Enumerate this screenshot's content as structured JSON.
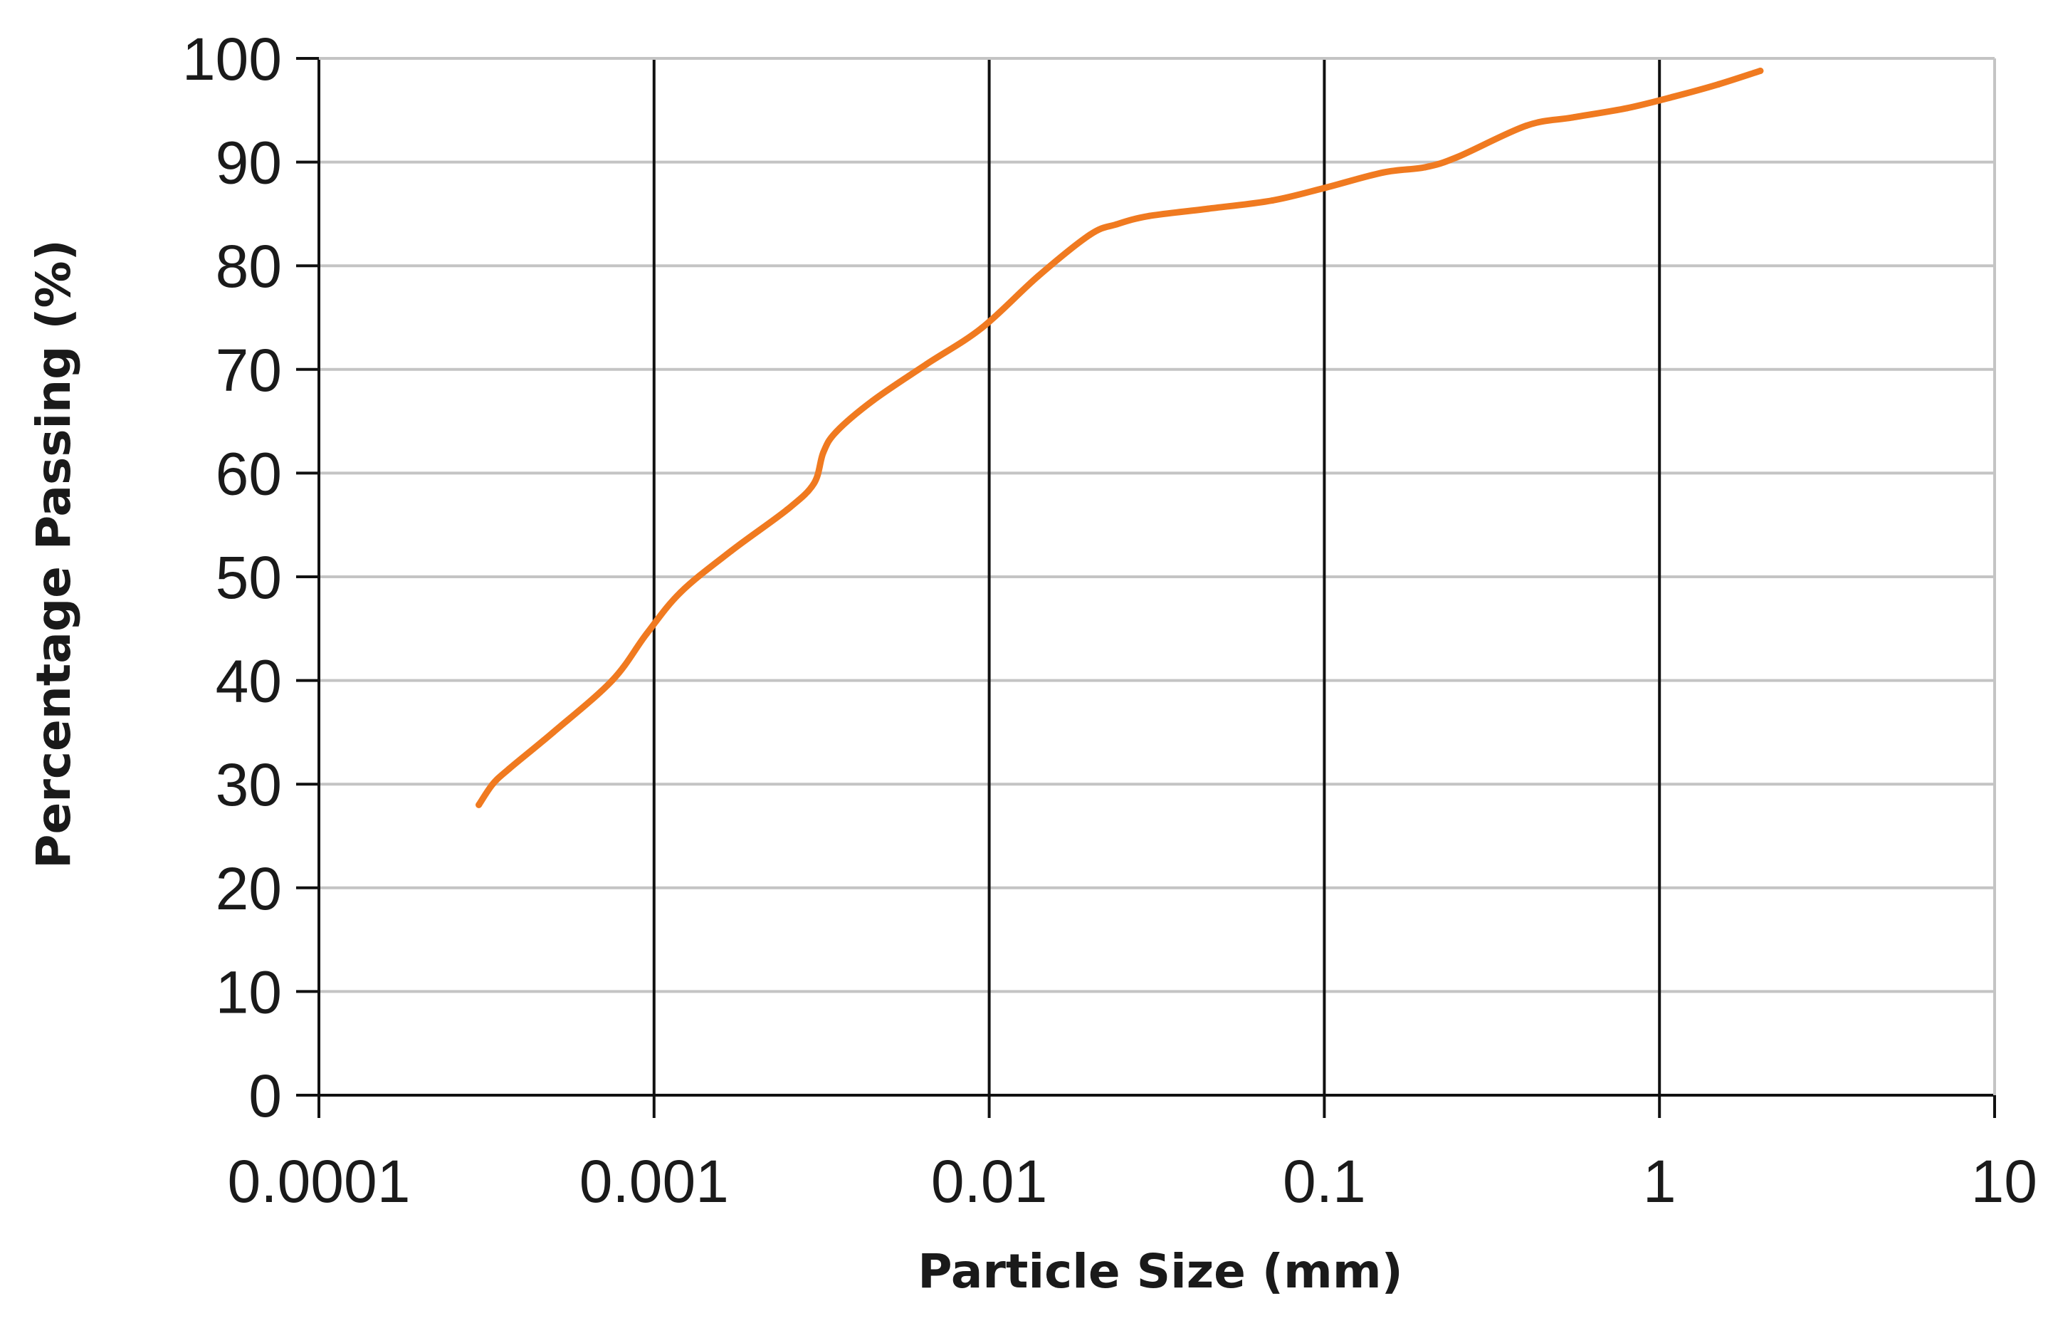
{
  "chart_data": {
    "type": "line",
    "title": "",
    "xlabel": "Particle Size (mm)",
    "ylabel": "Percentage Passing  (%)",
    "x_scale": "log",
    "xlim": [
      0.0001,
      10
    ],
    "ylim": [
      0,
      100
    ],
    "x_ticks": [
      0.0001,
      0.001,
      0.01,
      0.1,
      1,
      10
    ],
    "x_tick_labels": [
      "0.0001",
      "0.001",
      "0.01",
      "0.1",
      "1",
      "10"
    ],
    "y_ticks": [
      0,
      10,
      20,
      30,
      40,
      50,
      60,
      70,
      80,
      90,
      100
    ],
    "y_tick_labels": [
      "0",
      "10",
      "20",
      "30",
      "40",
      "50",
      "60",
      "70",
      "80",
      "90",
      "100"
    ],
    "grid": {
      "horizontal": true,
      "vertical": true
    },
    "legend": "none",
    "colors": {
      "series": "#f07a20",
      "horizontal_grid": "#c4c4c4",
      "vertical_grid": "#111111",
      "axis": "#111111",
      "text": "#1a1a1a"
    },
    "series": [
      {
        "x": [
          0.0003,
          0.00033,
          0.00037,
          0.0005,
          0.00075,
          0.00095,
          0.0012,
          0.0017,
          0.0025,
          0.003,
          0.0032,
          0.0035,
          0.0045,
          0.0065,
          0.0095,
          0.014,
          0.02,
          0.024,
          0.03,
          0.045,
          0.07,
          0.1,
          0.15,
          0.2,
          0.25,
          0.4,
          0.55,
          0.8,
          1.1,
          1.5,
          2.0
        ],
        "y": [
          28,
          30,
          31.5,
          35,
          40,
          44.5,
          48.5,
          52.5,
          56.5,
          59,
          62,
          64,
          67,
          70.5,
          74,
          79,
          83,
          84,
          84.8,
          85.5,
          86.3,
          87.5,
          89,
          89.5,
          90.5,
          93.5,
          94.3,
          95.2,
          96.3,
          97.5,
          98.8
        ]
      }
    ]
  }
}
